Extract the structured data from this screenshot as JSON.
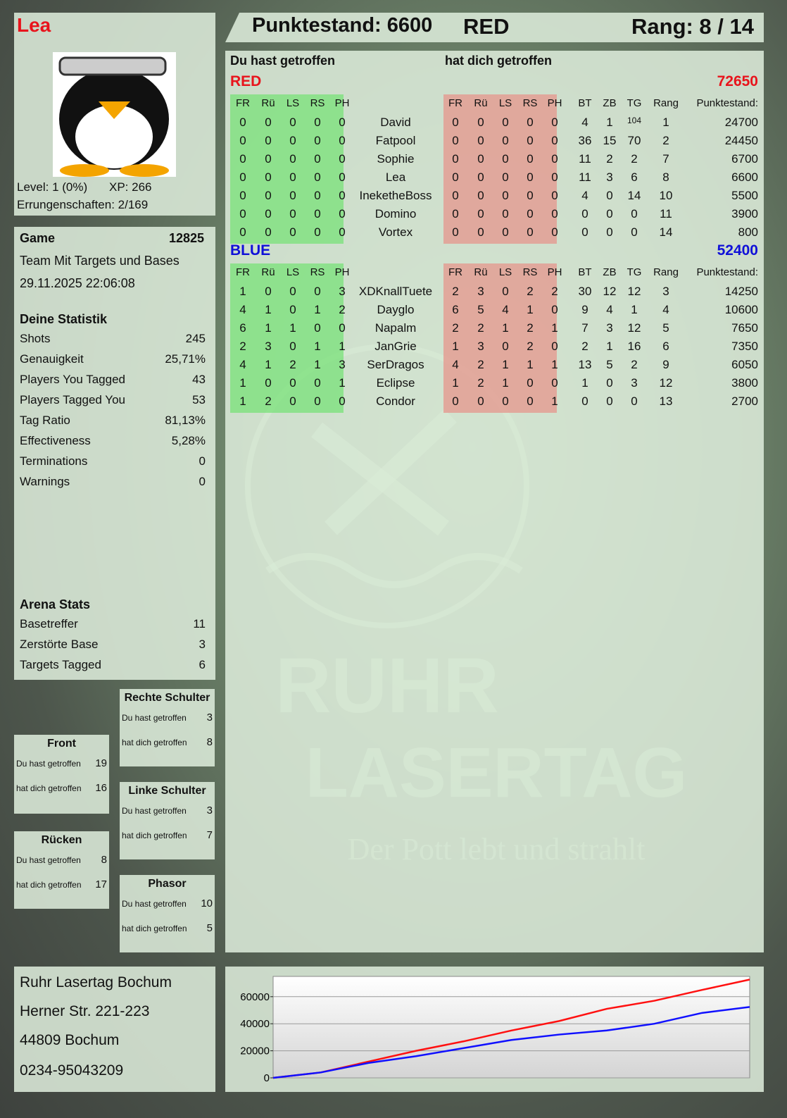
{
  "player": {
    "name": "Lea",
    "level": "Level: 1 (0%)",
    "xp": "XP: 266",
    "achievements": "Errungenschaften: 2/169",
    "avatar": "penguin-avatar"
  },
  "header": {
    "score": "Punktestand: 6600",
    "team": "RED",
    "rank": "Rang: 8 / 14"
  },
  "main": {
    "you_hit": "Du hast getroffen",
    "hit_you": "hat dich getroffen",
    "columns": {
      "hit": [
        "FR",
        "Rü",
        "LS",
        "RS",
        "PH"
      ],
      "stats": [
        "BT",
        "ZB",
        "TG",
        "Rang",
        "Punktestand:"
      ]
    },
    "teams": [
      {
        "name": "RED",
        "total": "72650",
        "color": "#e8141c",
        "players": [
          {
            "name": "David",
            "you_hit": [
              0,
              0,
              0,
              0,
              0
            ],
            "hit_you": [
              0,
              0,
              0,
              0,
              0
            ],
            "bt": 4,
            "zb": 1,
            "tg": 104,
            "rang": 1,
            "score": 24700
          },
          {
            "name": "Fatpool",
            "you_hit": [
              0,
              0,
              0,
              0,
              0
            ],
            "hit_you": [
              0,
              0,
              0,
              0,
              0
            ],
            "bt": 36,
            "zb": 15,
            "tg": 70,
            "rang": 2,
            "score": 24450
          },
          {
            "name": "Sophie",
            "you_hit": [
              0,
              0,
              0,
              0,
              0
            ],
            "hit_you": [
              0,
              0,
              0,
              0,
              0
            ],
            "bt": 11,
            "zb": 2,
            "tg": 2,
            "rang": 7,
            "score": 6700
          },
          {
            "name": "Lea",
            "you_hit": [
              0,
              0,
              0,
              0,
              0
            ],
            "hit_you": [
              0,
              0,
              0,
              0,
              0
            ],
            "bt": 11,
            "zb": 3,
            "tg": 6,
            "rang": 8,
            "score": 6600
          },
          {
            "name": "IneketheBoss",
            "you_hit": [
              0,
              0,
              0,
              0,
              0
            ],
            "hit_you": [
              0,
              0,
              0,
              0,
              0
            ],
            "bt": 4,
            "zb": 0,
            "tg": 14,
            "rang": 10,
            "score": 5500
          },
          {
            "name": "Domino",
            "you_hit": [
              0,
              0,
              0,
              0,
              0
            ],
            "hit_you": [
              0,
              0,
              0,
              0,
              0
            ],
            "bt": 0,
            "zb": 0,
            "tg": 0,
            "rang": 11,
            "score": 3900
          },
          {
            "name": "Vortex",
            "you_hit": [
              0,
              0,
              0,
              0,
              0
            ],
            "hit_you": [
              0,
              0,
              0,
              0,
              0
            ],
            "bt": 0,
            "zb": 0,
            "tg": 0,
            "rang": 14,
            "score": 800
          }
        ]
      },
      {
        "name": "BLUE",
        "total": "52400",
        "color": "#1010d8",
        "players": [
          {
            "name": "XDKnallTuete",
            "you_hit": [
              1,
              0,
              0,
              0,
              3
            ],
            "hit_you": [
              2,
              3,
              0,
              2,
              2
            ],
            "bt": 30,
            "zb": 12,
            "tg": 12,
            "rang": 3,
            "score": 14250
          },
          {
            "name": "Dayglo",
            "you_hit": [
              4,
              1,
              0,
              1,
              2
            ],
            "hit_you": [
              6,
              5,
              4,
              1,
              0
            ],
            "bt": 9,
            "zb": 4,
            "tg": 1,
            "rang": 4,
            "score": 10600
          },
          {
            "name": "Napalm",
            "you_hit": [
              6,
              1,
              1,
              0,
              0
            ],
            "hit_you": [
              2,
              2,
              1,
              2,
              1
            ],
            "bt": 7,
            "zb": 3,
            "tg": 12,
            "rang": 5,
            "score": 7650
          },
          {
            "name": "JanGrie",
            "you_hit": [
              2,
              3,
              0,
              1,
              1
            ],
            "hit_you": [
              1,
              3,
              0,
              2,
              0
            ],
            "bt": 2,
            "zb": 1,
            "tg": 16,
            "rang": 6,
            "score": 7350
          },
          {
            "name": "SerDragos",
            "you_hit": [
              4,
              1,
              2,
              1,
              3
            ],
            "hit_you": [
              4,
              2,
              1,
              1,
              1
            ],
            "bt": 13,
            "zb": 5,
            "tg": 2,
            "rang": 9,
            "score": 6050
          },
          {
            "name": "Eclipse",
            "you_hit": [
              1,
              0,
              0,
              0,
              1
            ],
            "hit_you": [
              1,
              2,
              1,
              0,
              0
            ],
            "bt": 1,
            "zb": 0,
            "tg": 3,
            "rang": 12,
            "score": 3800
          },
          {
            "name": "Condor",
            "you_hit": [
              1,
              2,
              0,
              0,
              0
            ],
            "hit_you": [
              0,
              0,
              0,
              0,
              1
            ],
            "bt": 0,
            "zb": 0,
            "tg": 0,
            "rang": 13,
            "score": 2700
          }
        ]
      }
    ]
  },
  "game": {
    "label": "Game",
    "id": "12825",
    "mode": "Team Mit Targets und Bases",
    "date": "29.11.2025 22:06:08",
    "stats_title": "Deine Statistik",
    "stats": [
      [
        "Shots",
        "245"
      ],
      [
        "Genauigkeit",
        "25,71%"
      ],
      [
        "Players You Tagged",
        "43"
      ],
      [
        "Players Tagged You",
        "53"
      ],
      [
        "Tag Ratio",
        "81,13%"
      ],
      [
        "Effectiveness",
        "5,28%"
      ],
      [
        "Terminations",
        "0"
      ],
      [
        "Warnings",
        "0"
      ]
    ],
    "arena_title": "Arena Stats",
    "arena": [
      [
        "Basetreffer",
        "11"
      ],
      [
        "Zerstörte Base",
        "3"
      ],
      [
        "Targets Tagged",
        "6"
      ]
    ]
  },
  "zones": {
    "you_hit": "Du hast getroffen",
    "hit_you": "hat dich getroffen",
    "items": [
      {
        "name": "Front",
        "you_hit": "19",
        "hit_you": "16"
      },
      {
        "name": "Rücken",
        "you_hit": "8",
        "hit_you": "17"
      },
      {
        "name": "Rechte Schulter",
        "you_hit": "3",
        "hit_you": "8"
      },
      {
        "name": "Linke Schulter",
        "you_hit": "3",
        "hit_you": "7"
      },
      {
        "name": "Phasor",
        "you_hit": "10",
        "hit_you": "5"
      }
    ]
  },
  "address": [
    "Ruhr Lasertag Bochum",
    "Herner Str. 221-223",
    "44809 Bochum",
    "0234-95043209"
  ],
  "logo": {
    "line1": "RUHR",
    "line2": "LASERTAG",
    "slogan": "Der Pott lebt und strahlt"
  },
  "chart_data": {
    "type": "line",
    "title": "",
    "xlabel": "",
    "ylabel": "",
    "ylim": [
      0,
      75000
    ],
    "yticks": [
      "0",
      "20000",
      "40000",
      "60000"
    ],
    "grid": true,
    "x": [
      0,
      1,
      2,
      3,
      4,
      5,
      6,
      7,
      8,
      9,
      10
    ],
    "series": [
      {
        "color": "#ff1010",
        "values": [
          0,
          4000,
          12000,
          20000,
          27000,
          35000,
          42000,
          51000,
          57000,
          65000,
          72650
        ]
      },
      {
        "color": "#1010ff",
        "values": [
          0,
          4000,
          11000,
          16000,
          22000,
          28000,
          32000,
          35000,
          40000,
          48000,
          52400
        ]
      }
    ]
  }
}
